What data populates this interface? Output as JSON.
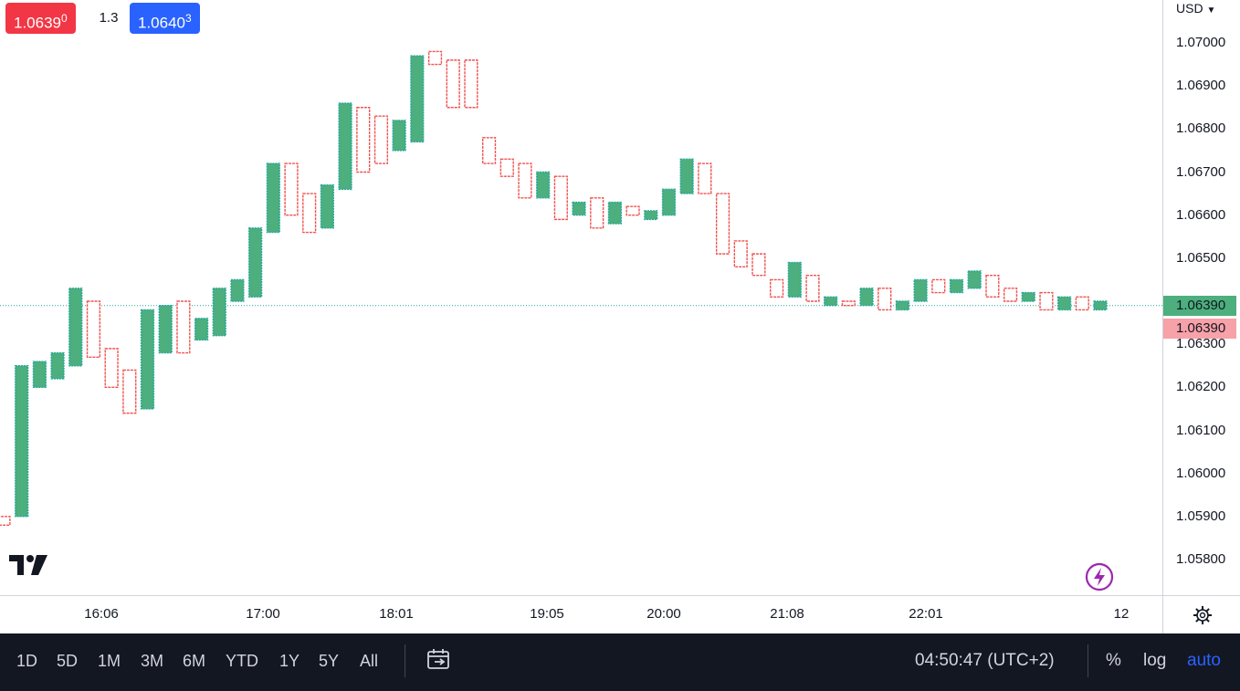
{
  "quotes": {
    "sell_main": "1.0639",
    "sell_sup": "0",
    "spread": "1.3",
    "buy_main": "1.0640",
    "buy_sup": "3"
  },
  "currency": "USD",
  "price_axis": {
    "ticks": [
      "1.07000",
      "1.06900",
      "1.06800",
      "1.06700",
      "1.06600",
      "1.06500",
      "1.06300",
      "1.06200",
      "1.06100",
      "1.06000",
      "1.05900",
      "1.05800"
    ],
    "last_price": "1.06390",
    "last_price_2": "1.06390"
  },
  "time_axis": {
    "labels": [
      "16:06",
      "17:00",
      "18:01",
      "19:05",
      "20:00",
      "21:08",
      "22:01",
      "12"
    ]
  },
  "chart_data": {
    "type": "point_and_figure",
    "ylim": [
      1.0572,
      1.0713
    ],
    "last_price": 1.0639,
    "colors": {
      "up": "#26a69a",
      "up_fill": "#4caf7d",
      "down": "#ef5350",
      "current_line": "#26a69a"
    },
    "columns": [
      {
        "dir": "down",
        "high": 1.059,
        "low": 1.0588
      },
      {
        "dir": "up",
        "high": 1.0625,
        "low": 1.059
      },
      {
        "dir": "up",
        "high": 1.0626,
        "low": 1.062
      },
      {
        "dir": "up",
        "high": 1.0628,
        "low": 1.0622
      },
      {
        "dir": "up",
        "high": 1.0643,
        "low": 1.0625
      },
      {
        "dir": "down",
        "high": 1.064,
        "low": 1.0627
      },
      {
        "dir": "down",
        "high": 1.0629,
        "low": 1.062
      },
      {
        "dir": "down",
        "high": 1.0624,
        "low": 1.0614
      },
      {
        "dir": "up",
        "high": 1.0638,
        "low": 1.0615
      },
      {
        "dir": "up",
        "high": 1.0639,
        "low": 1.0628
      },
      {
        "dir": "down",
        "high": 1.064,
        "low": 1.0628
      },
      {
        "dir": "up",
        "high": 1.0636,
        "low": 1.0631
      },
      {
        "dir": "up",
        "high": 1.0643,
        "low": 1.0632
      },
      {
        "dir": "up",
        "high": 1.0645,
        "low": 1.064
      },
      {
        "dir": "up",
        "high": 1.0657,
        "low": 1.0641
      },
      {
        "dir": "up",
        "high": 1.0672,
        "low": 1.0656
      },
      {
        "dir": "down",
        "high": 1.0672,
        "low": 1.066
      },
      {
        "dir": "down",
        "high": 1.0665,
        "low": 1.0656
      },
      {
        "dir": "up",
        "high": 1.0667,
        "low": 1.0657
      },
      {
        "dir": "up",
        "high": 1.0686,
        "low": 1.0666
      },
      {
        "dir": "down",
        "high": 1.0685,
        "low": 1.067
      },
      {
        "dir": "down",
        "high": 1.0683,
        "low": 1.0672
      },
      {
        "dir": "up",
        "high": 1.0682,
        "low": 1.0675
      },
      {
        "dir": "up",
        "high": 1.0697,
        "low": 1.0677
      },
      {
        "dir": "down",
        "high": 1.0698,
        "low": 1.0695
      },
      {
        "dir": "down",
        "high": 1.0696,
        "low": 1.0685
      },
      {
        "dir": "down",
        "high": 1.0696,
        "low": 1.0685
      },
      {
        "dir": "down",
        "high": 1.0678,
        "low": 1.0672
      },
      {
        "dir": "down",
        "high": 1.0673,
        "low": 1.0669
      },
      {
        "dir": "down",
        "high": 1.0672,
        "low": 1.0664
      },
      {
        "dir": "up",
        "high": 1.067,
        "low": 1.0664
      },
      {
        "dir": "down",
        "high": 1.0669,
        "low": 1.0659
      },
      {
        "dir": "up",
        "high": 1.0663,
        "low": 1.066
      },
      {
        "dir": "down",
        "high": 1.0664,
        "low": 1.0657
      },
      {
        "dir": "up",
        "high": 1.0663,
        "low": 1.0658
      },
      {
        "dir": "down",
        "high": 1.0662,
        "low": 1.066
      },
      {
        "dir": "up",
        "high": 1.0661,
        "low": 1.0659
      },
      {
        "dir": "up",
        "high": 1.0666,
        "low": 1.066
      },
      {
        "dir": "up",
        "high": 1.0673,
        "low": 1.0665
      },
      {
        "dir": "down",
        "high": 1.0672,
        "low": 1.0665
      },
      {
        "dir": "down",
        "high": 1.0665,
        "low": 1.0651
      },
      {
        "dir": "down",
        "high": 1.0654,
        "low": 1.0648
      },
      {
        "dir": "down",
        "high": 1.0651,
        "low": 1.0646
      },
      {
        "dir": "down",
        "high": 1.0645,
        "low": 1.0641
      },
      {
        "dir": "up",
        "high": 1.0649,
        "low": 1.0641
      },
      {
        "dir": "down",
        "high": 1.0646,
        "low": 1.064
      },
      {
        "dir": "up",
        "high": 1.0641,
        "low": 1.0639
      },
      {
        "dir": "down",
        "high": 1.064,
        "low": 1.0639
      },
      {
        "dir": "up",
        "high": 1.0643,
        "low": 1.0639
      },
      {
        "dir": "down",
        "high": 1.0643,
        "low": 1.0638
      },
      {
        "dir": "up",
        "high": 1.064,
        "low": 1.0638
      },
      {
        "dir": "up",
        "high": 1.0645,
        "low": 1.064
      },
      {
        "dir": "down",
        "high": 1.0645,
        "low": 1.0642
      },
      {
        "dir": "up",
        "high": 1.0645,
        "low": 1.0642
      },
      {
        "dir": "up",
        "high": 1.0647,
        "low": 1.0643
      },
      {
        "dir": "down",
        "high": 1.0646,
        "low": 1.0641
      },
      {
        "dir": "down",
        "high": 1.0643,
        "low": 1.064
      },
      {
        "dir": "up",
        "high": 1.0642,
        "low": 1.064
      },
      {
        "dir": "down",
        "high": 1.0642,
        "low": 1.0638
      },
      {
        "dir": "up",
        "high": 1.0641,
        "low": 1.0638
      },
      {
        "dir": "down",
        "high": 1.0641,
        "low": 1.0638
      },
      {
        "dir": "up",
        "high": 1.064,
        "low": 1.0638
      }
    ]
  },
  "bottom_bar": {
    "timeframes": [
      "1D",
      "5D",
      "1M",
      "3M",
      "6M",
      "YTD",
      "1Y",
      "5Y",
      "All"
    ],
    "clock": "04:50:47 (UTC+2)",
    "percent": "%",
    "log": "log",
    "auto": "auto"
  }
}
